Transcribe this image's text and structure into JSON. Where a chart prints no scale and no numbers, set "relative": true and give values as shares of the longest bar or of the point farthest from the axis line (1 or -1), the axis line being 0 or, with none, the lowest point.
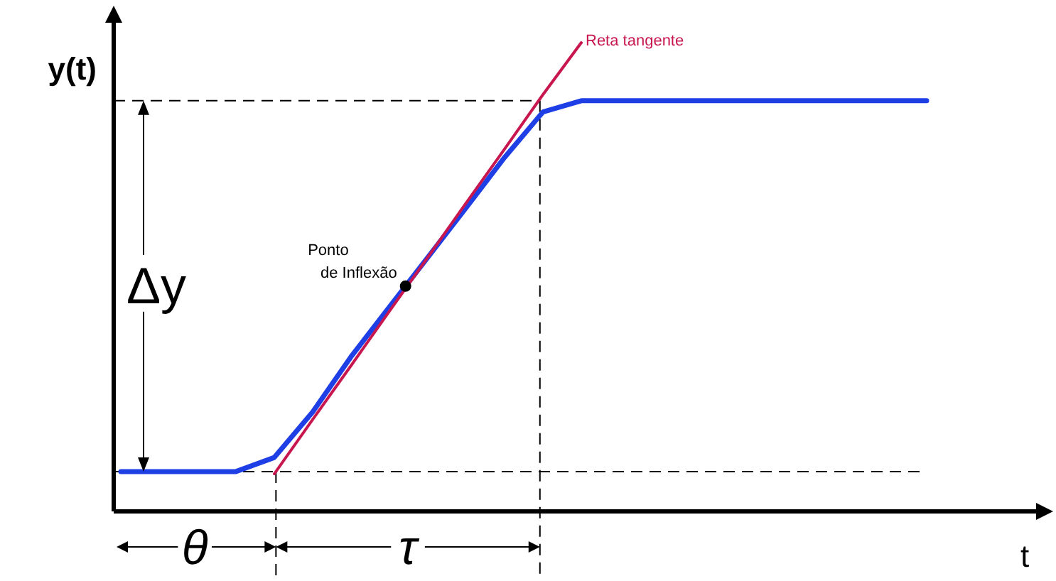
{
  "chart_data": {
    "type": "line",
    "relative": true,
    "xlabel": "t",
    "ylabel": "y(t)",
    "marker": "none",
    "line_style": "solid",
    "categories": [
      null,
      null,
      null,
      null,
      null,
      null,
      null,
      null,
      null,
      null,
      null,
      null,
      null,
      null,
      null,
      null,
      null,
      null,
      null,
      null,
      null,
      null,
      null,
      null,
      null
    ],
    "series": [
      {
        "color": "#1f3fe6",
        "values": [
          0.085,
          0.085,
          0.085,
          0.085,
          0.115,
          0.212,
          0.33,
          0.436,
          0.542,
          0.648,
          0.755,
          0.852,
          0.876,
          0.876,
          0.876,
          0.876,
          0.876,
          0.876,
          0.876,
          0.876,
          0.876,
          0.876,
          null,
          null,
          null
        ]
      },
      {
        "name": "Reta tangente",
        "color": "#c8174f",
        "values": [
          null,
          null,
          null,
          null,
          0.08,
          0.196,
          0.311,
          0.427,
          0.542,
          0.658,
          0.773,
          0.889,
          1,
          null,
          null,
          null,
          null,
          null,
          null,
          null,
          null,
          null,
          null,
          null,
          null
        ]
      }
    ],
    "ref_lines": [
      {
        "axis": "y",
        "value": 0.876,
        "line_style": "dashed",
        "color": "#000000"
      },
      {
        "axis": "y",
        "value": 0.085,
        "line_style": "dashed",
        "color": "#000000"
      }
    ],
    "annotations": [
      "Ponto de Inflexão",
      "Δy",
      "θ",
      "τ"
    ]
  }
}
